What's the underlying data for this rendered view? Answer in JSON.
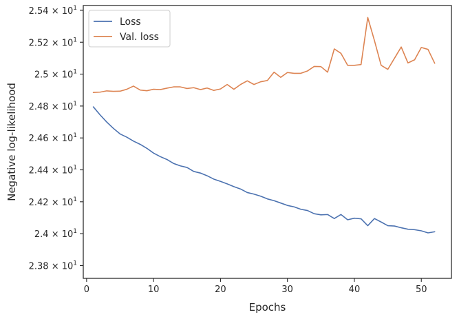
{
  "chart_data": {
    "type": "line",
    "xlabel": "Epochs",
    "ylabel": "Negative log-likelihood",
    "xlim": [
      -0.5,
      54.5
    ],
    "ylim": [
      23.72,
      25.43
    ],
    "grid": false,
    "legend_position": "top-left",
    "x_ticks": [
      {
        "value": 0,
        "label": "0"
      },
      {
        "value": 10,
        "label": "10"
      },
      {
        "value": 20,
        "label": "20"
      },
      {
        "value": 30,
        "label": "30"
      },
      {
        "value": 40,
        "label": "40"
      },
      {
        "value": 50,
        "label": "50"
      }
    ],
    "y_ticks": [
      {
        "value": 23.8,
        "mant": "2.38",
        "exp": "1"
      },
      {
        "value": 24.0,
        "mant": "2.4",
        "exp": "1"
      },
      {
        "value": 24.2,
        "mant": "2.42",
        "exp": "1"
      },
      {
        "value": 24.4,
        "mant": "2.44",
        "exp": "1"
      },
      {
        "value": 24.6,
        "mant": "2.46",
        "exp": "1"
      },
      {
        "value": 24.8,
        "mant": "2.48",
        "exp": "1"
      },
      {
        "value": 25.0,
        "mant": "2.5",
        "exp": "1"
      },
      {
        "value": 25.2,
        "mant": "2.52",
        "exp": "1"
      },
      {
        "value": 25.4,
        "mant": "2.54",
        "exp": "1"
      }
    ],
    "x": [
      1,
      2,
      3,
      4,
      5,
      6,
      7,
      8,
      9,
      10,
      11,
      12,
      13,
      14,
      15,
      16,
      17,
      18,
      19,
      20,
      21,
      22,
      23,
      24,
      25,
      26,
      27,
      28,
      29,
      30,
      31,
      32,
      33,
      34,
      35,
      36,
      37,
      38,
      39,
      40,
      41,
      42,
      43,
      44,
      45,
      46,
      47,
      48,
      49,
      50,
      51,
      52
    ],
    "series": [
      {
        "name": "Loss",
        "color": "#4c72b0",
        "values": [
          24.795,
          24.745,
          24.7,
          24.66,
          24.625,
          24.605,
          24.58,
          24.56,
          24.535,
          24.505,
          24.483,
          24.465,
          24.44,
          24.425,
          24.415,
          24.39,
          24.38,
          24.363,
          24.342,
          24.328,
          24.312,
          24.295,
          24.28,
          24.258,
          24.248,
          24.235,
          24.218,
          24.207,
          24.192,
          24.177,
          24.168,
          24.153,
          24.145,
          24.125,
          24.118,
          24.12,
          24.095,
          24.12,
          24.087,
          24.097,
          24.093,
          24.05,
          24.095,
          24.073,
          24.05,
          24.048,
          24.037,
          24.028,
          24.025,
          24.018,
          24.005,
          24.012
        ]
      },
      {
        "name": "Val. loss",
        "color": "#dd8452",
        "values": [
          24.885,
          24.887,
          24.895,
          24.892,
          24.893,
          24.905,
          24.925,
          24.9,
          24.896,
          24.905,
          24.903,
          24.912,
          24.92,
          24.92,
          24.91,
          24.915,
          24.903,
          24.913,
          24.898,
          24.907,
          24.935,
          24.905,
          24.935,
          24.958,
          24.935,
          24.952,
          24.96,
          25.012,
          24.98,
          25.01,
          25.005,
          25.005,
          25.02,
          25.048,
          25.047,
          25.012,
          25.158,
          25.13,
          25.055,
          25.055,
          25.06,
          25.355,
          25.21,
          25.055,
          25.03,
          25.1,
          25.17,
          25.07,
          25.09,
          25.167,
          25.155,
          25.068
        ]
      }
    ]
  }
}
